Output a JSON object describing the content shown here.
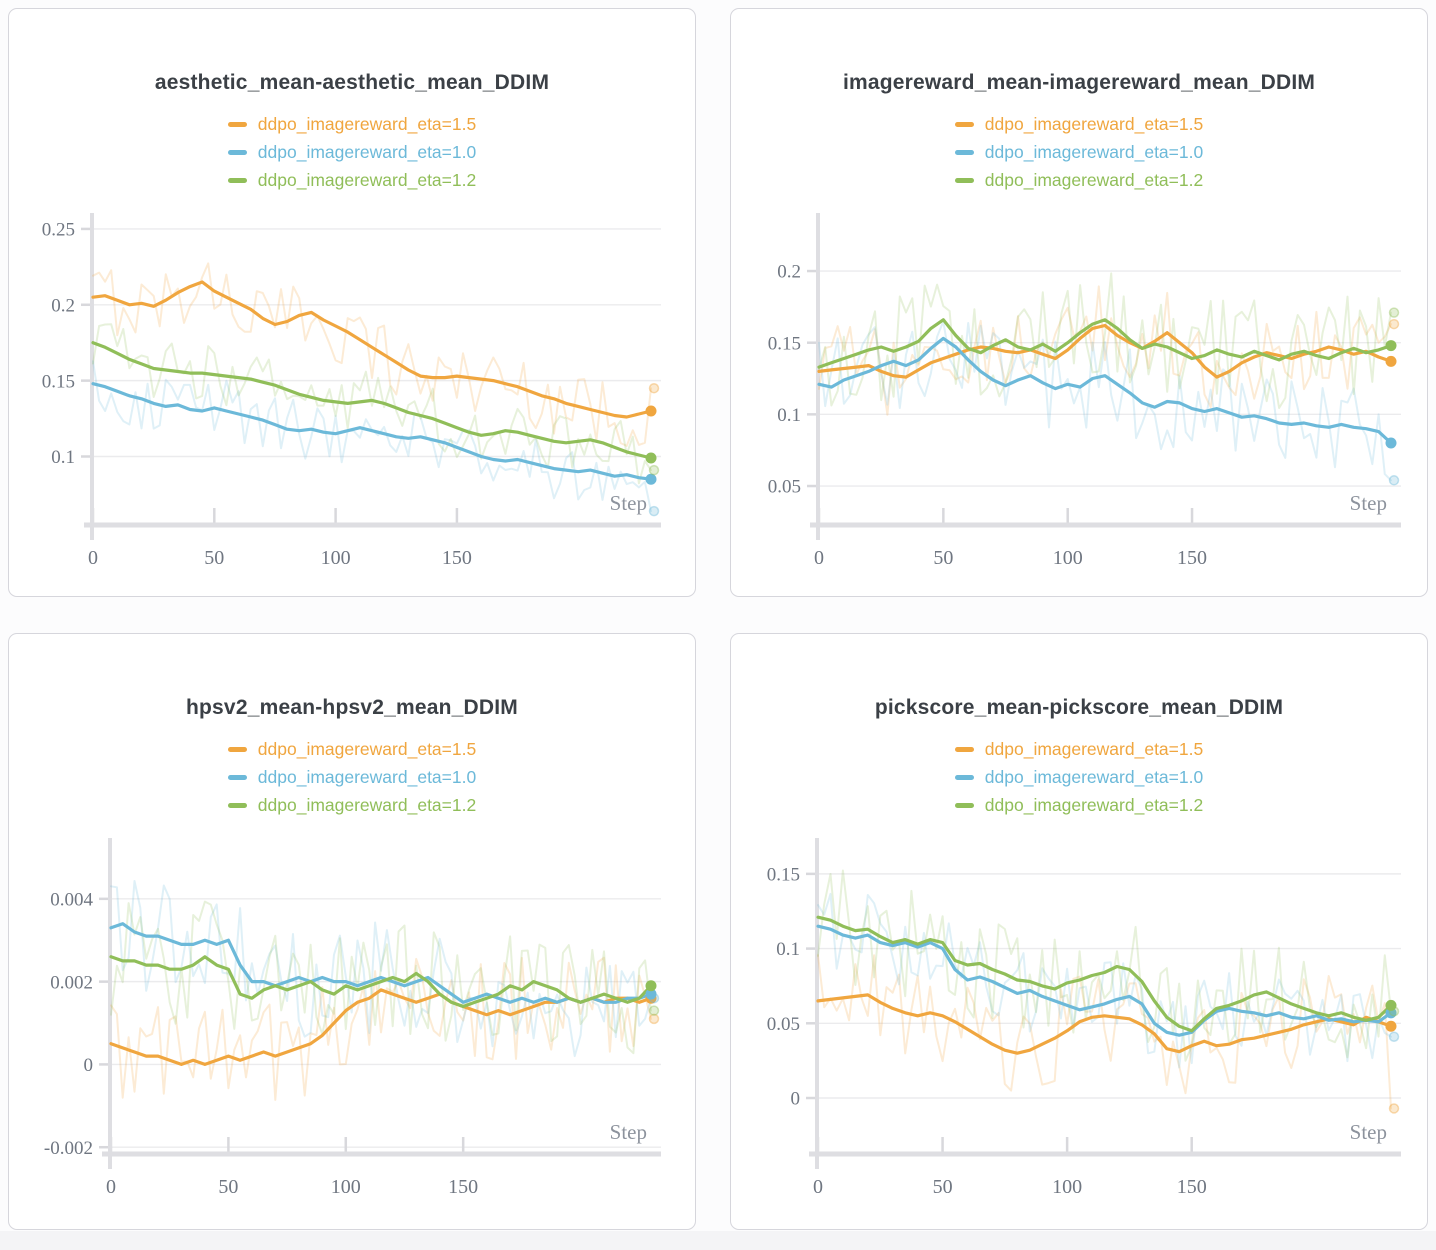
{
  "page": {
    "background": "#fcfcfd",
    "footer_strip_color": "#f4f4f6"
  },
  "styles": {
    "card_bg": "#ffffff",
    "card_border": "#d6d6dc",
    "title_color": "#3b4046",
    "tick_color": "#6f7681",
    "grid_color": "#ebebed",
    "axis_color": "#dedee2",
    "tick_stub_color": "#d8d8dc",
    "step_label_color": "#8d939d",
    "accent_orange": "#F0A63F",
    "accent_blue": "#6CB9D9",
    "accent_green": "#90BE59"
  },
  "x_axis_label": "Step",
  "chart_data": [
    {
      "type": "line",
      "title": "aesthetic_mean-aesthetic_mean_DDIM",
      "xlabel": "Step",
      "x_max": 230,
      "x_ticks": [
        {
          "v": 0,
          "label": "0"
        },
        {
          "v": 50,
          "label": "50"
        },
        {
          "v": 100,
          "label": "100"
        },
        {
          "v": 150,
          "label": "150"
        }
      ],
      "y_ticks": [
        {
          "v": 0.25,
          "label": "0.25"
        },
        {
          "v": 0.2,
          "label": "0.2"
        },
        {
          "v": 0.15,
          "label": "0.15"
        },
        {
          "v": 0.1,
          "label": "0.1"
        }
      ],
      "ylim": [
        0.0555,
        0.2605
      ],
      "legend_position": "top",
      "grid": true,
      "series": [
        {
          "name": "ddpo_imagereward_eta=1.5",
          "color": "#F0A63F",
          "noise": 0.024,
          "raw_end": 0.145,
          "values": [
            0.205,
            0.206,
            0.203,
            0.2,
            0.201,
            0.199,
            0.203,
            0.208,
            0.212,
            0.215,
            0.209,
            0.205,
            0.201,
            0.197,
            0.191,
            0.187,
            0.189,
            0.193,
            0.195,
            0.19,
            0.186,
            0.182,
            0.177,
            0.172,
            0.167,
            0.162,
            0.157,
            0.153,
            0.152,
            0.152,
            0.153,
            0.152,
            0.151,
            0.15,
            0.148,
            0.146,
            0.143,
            0.14,
            0.138,
            0.135,
            0.133,
            0.131,
            0.129,
            0.127,
            0.126,
            0.128,
            0.13
          ]
        },
        {
          "name": "ddpo_imagereward_eta=1.0",
          "color": "#6CB9D9",
          "noise": 0.02,
          "raw_end": 0.064,
          "values": [
            0.148,
            0.146,
            0.143,
            0.14,
            0.138,
            0.135,
            0.133,
            0.134,
            0.131,
            0.13,
            0.132,
            0.13,
            0.128,
            0.126,
            0.124,
            0.121,
            0.118,
            0.117,
            0.118,
            0.116,
            0.115,
            0.117,
            0.119,
            0.117,
            0.115,
            0.113,
            0.112,
            0.113,
            0.111,
            0.109,
            0.106,
            0.103,
            0.1,
            0.098,
            0.097,
            0.098,
            0.096,
            0.094,
            0.092,
            0.091,
            0.09,
            0.091,
            0.089,
            0.087,
            0.088,
            0.086,
            0.085
          ]
        },
        {
          "name": "ddpo_imagereward_eta=1.2",
          "color": "#90BE59",
          "noise": 0.02,
          "raw_end": 0.091,
          "values": [
            0.175,
            0.172,
            0.168,
            0.164,
            0.161,
            0.158,
            0.157,
            0.156,
            0.155,
            0.155,
            0.154,
            0.153,
            0.152,
            0.151,
            0.149,
            0.147,
            0.144,
            0.141,
            0.139,
            0.137,
            0.136,
            0.135,
            0.136,
            0.137,
            0.135,
            0.132,
            0.129,
            0.127,
            0.125,
            0.122,
            0.119,
            0.116,
            0.114,
            0.115,
            0.117,
            0.116,
            0.114,
            0.112,
            0.11,
            0.109,
            0.11,
            0.111,
            0.109,
            0.106,
            0.103,
            0.101,
            0.099
          ]
        }
      ]
    },
    {
      "type": "line",
      "title": "imagereward_mean-imagereward_mean_DDIM",
      "xlabel": "Step",
      "x_max": 230,
      "x_ticks": [
        {
          "v": 0,
          "label": "0"
        },
        {
          "v": 50,
          "label": "50"
        },
        {
          "v": 100,
          "label": "100"
        },
        {
          "v": 150,
          "label": "150"
        }
      ],
      "y_ticks": [
        {
          "v": 0.2,
          "label": "0.2"
        },
        {
          "v": 0.15,
          "label": "0.15"
        },
        {
          "v": 0.1,
          "label": "0.1"
        },
        {
          "v": 0.05,
          "label": "0.05"
        }
      ],
      "ylim": [
        0.0235,
        0.2405
      ],
      "legend_position": "top",
      "grid": true,
      "series": [
        {
          "name": "ddpo_imagereward_eta=1.5",
          "color": "#F0A63F",
          "noise": 0.03,
          "raw_end": 0.163,
          "values": [
            0.13,
            0.131,
            0.132,
            0.133,
            0.134,
            0.13,
            0.127,
            0.126,
            0.131,
            0.136,
            0.139,
            0.142,
            0.145,
            0.147,
            0.146,
            0.144,
            0.143,
            0.145,
            0.142,
            0.139,
            0.145,
            0.153,
            0.16,
            0.162,
            0.155,
            0.15,
            0.146,
            0.151,
            0.157,
            0.15,
            0.143,
            0.133,
            0.126,
            0.13,
            0.136,
            0.14,
            0.143,
            0.141,
            0.139,
            0.142,
            0.144,
            0.147,
            0.145,
            0.142,
            0.144,
            0.14,
            0.137
          ]
        },
        {
          "name": "ddpo_imagereward_eta=1.0",
          "color": "#6CB9D9",
          "noise": 0.033,
          "raw_end": 0.054,
          "values": [
            0.121,
            0.119,
            0.124,
            0.127,
            0.13,
            0.134,
            0.137,
            0.134,
            0.138,
            0.146,
            0.153,
            0.147,
            0.138,
            0.13,
            0.124,
            0.12,
            0.124,
            0.127,
            0.122,
            0.118,
            0.121,
            0.119,
            0.125,
            0.127,
            0.121,
            0.115,
            0.108,
            0.105,
            0.109,
            0.108,
            0.104,
            0.102,
            0.104,
            0.101,
            0.098,
            0.099,
            0.097,
            0.094,
            0.093,
            0.094,
            0.092,
            0.091,
            0.093,
            0.091,
            0.09,
            0.088,
            0.08
          ]
        },
        {
          "name": "ddpo_imagereward_eta=1.2",
          "color": "#90BE59",
          "noise": 0.038,
          "raw_end": 0.171,
          "values": [
            0.133,
            0.136,
            0.139,
            0.142,
            0.145,
            0.147,
            0.144,
            0.147,
            0.151,
            0.16,
            0.166,
            0.155,
            0.146,
            0.143,
            0.148,
            0.152,
            0.147,
            0.145,
            0.149,
            0.144,
            0.15,
            0.157,
            0.163,
            0.166,
            0.16,
            0.152,
            0.146,
            0.149,
            0.147,
            0.143,
            0.139,
            0.141,
            0.145,
            0.142,
            0.14,
            0.144,
            0.141,
            0.138,
            0.142,
            0.144,
            0.141,
            0.139,
            0.143,
            0.146,
            0.143,
            0.145,
            0.148
          ]
        }
      ]
    },
    {
      "type": "line",
      "title": "hpsv2_mean-hpsv2_mean_DDIM",
      "xlabel": "Step",
      "x_max": 230,
      "x_ticks": [
        {
          "v": 0,
          "label": "0"
        },
        {
          "v": 50,
          "label": "50"
        },
        {
          "v": 100,
          "label": "100"
        },
        {
          "v": 150,
          "label": "150"
        }
      ],
      "y_ticks": [
        {
          "v": 0.004,
          "label": "0.004"
        },
        {
          "v": 0.002,
          "label": "0.002"
        },
        {
          "v": 0,
          "label": "0"
        },
        {
          "v": -0.002,
          "label": "-0.002"
        }
      ],
      "ylim": [
        -0.00214,
        0.00547
      ],
      "legend_position": "top",
      "grid": true,
      "series": [
        {
          "name": "ddpo_imagereward_eta=1.5",
          "color": "#F0A63F",
          "noise": 0.0013,
          "raw_end": 0.0011,
          "values": [
            0.0005,
            0.0004,
            0.0003,
            0.0002,
            0.0002,
            0.0001,
            0.0,
            0.0001,
            0.0,
            0.0001,
            0.0002,
            0.0001,
            0.0002,
            0.0003,
            0.0002,
            0.0003,
            0.0004,
            0.0005,
            0.0007,
            0.001,
            0.0013,
            0.0015,
            0.0016,
            0.0018,
            0.0017,
            0.0016,
            0.0015,
            0.0016,
            0.0017,
            0.0015,
            0.0014,
            0.0013,
            0.0012,
            0.0013,
            0.0012,
            0.0013,
            0.0014,
            0.0015,
            0.0015,
            0.0016,
            0.0015,
            0.0016,
            0.0015,
            0.0016,
            0.0016,
            0.0015,
            0.0016
          ]
        },
        {
          "name": "ddpo_imagereward_eta=1.0",
          "color": "#6CB9D9",
          "noise": 0.0014,
          "raw_end": 0.0016,
          "values": [
            0.0033,
            0.0034,
            0.0032,
            0.0031,
            0.0031,
            0.003,
            0.0029,
            0.0029,
            0.003,
            0.0029,
            0.003,
            0.0024,
            0.002,
            0.002,
            0.0019,
            0.002,
            0.0021,
            0.002,
            0.0021,
            0.002,
            0.002,
            0.0019,
            0.002,
            0.0021,
            0.002,
            0.0019,
            0.002,
            0.0021,
            0.0019,
            0.0017,
            0.0015,
            0.0016,
            0.0017,
            0.0016,
            0.0015,
            0.0016,
            0.0015,
            0.0016,
            0.0015,
            0.0016,
            0.0015,
            0.0016,
            0.0015,
            0.0015,
            0.0016,
            0.0016,
            0.0017
          ]
        },
        {
          "name": "ddpo_imagereward_eta=1.2",
          "color": "#90BE59",
          "noise": 0.0014,
          "raw_end": 0.0013,
          "values": [
            0.0026,
            0.0025,
            0.0025,
            0.0024,
            0.0024,
            0.0023,
            0.0023,
            0.0024,
            0.0026,
            0.0024,
            0.0023,
            0.0017,
            0.0016,
            0.0018,
            0.0019,
            0.0018,
            0.0019,
            0.002,
            0.0018,
            0.0017,
            0.0019,
            0.0018,
            0.0019,
            0.002,
            0.0021,
            0.002,
            0.0022,
            0.002,
            0.0017,
            0.0015,
            0.0014,
            0.0015,
            0.0016,
            0.0017,
            0.0019,
            0.0018,
            0.002,
            0.0019,
            0.0018,
            0.0016,
            0.0015,
            0.0016,
            0.0017,
            0.0016,
            0.0015,
            0.0016,
            0.0019
          ]
        }
      ]
    },
    {
      "type": "line",
      "title": "pickscore_mean-pickscore_mean_DDIM",
      "xlabel": "Step",
      "x_max": 230,
      "x_ticks": [
        {
          "v": 0,
          "label": "0"
        },
        {
          "v": 50,
          "label": "50"
        },
        {
          "v": 100,
          "label": "100"
        },
        {
          "v": 150,
          "label": "150"
        }
      ],
      "y_ticks": [
        {
          "v": 0.15,
          "label": "0.15"
        },
        {
          "v": 0.1,
          "label": "0.1"
        },
        {
          "v": 0.05,
          "label": "0.05"
        },
        {
          "v": 0,
          "label": "0"
        }
      ],
      "ylim": [
        -0.0368,
        0.174
      ],
      "legend_position": "top",
      "grid": true,
      "series": [
        {
          "name": "ddpo_imagereward_eta=1.5",
          "color": "#F0A63F",
          "noise": 0.032,
          "raw_end": -0.007,
          "values": [
            0.065,
            0.066,
            0.067,
            0.068,
            0.069,
            0.064,
            0.06,
            0.057,
            0.055,
            0.057,
            0.055,
            0.051,
            0.046,
            0.041,
            0.036,
            0.032,
            0.03,
            0.032,
            0.036,
            0.04,
            0.045,
            0.051,
            0.054,
            0.055,
            0.054,
            0.053,
            0.049,
            0.043,
            0.033,
            0.031,
            0.035,
            0.038,
            0.035,
            0.036,
            0.039,
            0.04,
            0.042,
            0.044,
            0.046,
            0.049,
            0.051,
            0.053,
            0.051,
            0.049,
            0.054,
            0.051,
            0.048
          ]
        },
        {
          "name": "ddpo_imagereward_eta=1.0",
          "color": "#6CB9D9",
          "noise": 0.028,
          "raw_end": 0.041,
          "values": [
            0.115,
            0.113,
            0.109,
            0.107,
            0.109,
            0.104,
            0.102,
            0.104,
            0.101,
            0.104,
            0.1,
            0.086,
            0.079,
            0.081,
            0.078,
            0.074,
            0.07,
            0.072,
            0.068,
            0.065,
            0.062,
            0.059,
            0.061,
            0.063,
            0.066,
            0.068,
            0.063,
            0.05,
            0.044,
            0.042,
            0.044,
            0.052,
            0.058,
            0.06,
            0.058,
            0.057,
            0.055,
            0.057,
            0.054,
            0.053,
            0.055,
            0.052,
            0.053,
            0.051,
            0.052,
            0.051,
            0.057
          ]
        },
        {
          "name": "ddpo_imagereward_eta=1.2",
          "color": "#90BE59",
          "noise": 0.038,
          "raw_end": 0.058,
          "values": [
            0.121,
            0.119,
            0.115,
            0.112,
            0.113,
            0.108,
            0.104,
            0.106,
            0.103,
            0.106,
            0.104,
            0.092,
            0.089,
            0.09,
            0.086,
            0.083,
            0.079,
            0.078,
            0.075,
            0.073,
            0.077,
            0.079,
            0.082,
            0.084,
            0.088,
            0.086,
            0.078,
            0.065,
            0.054,
            0.048,
            0.045,
            0.053,
            0.06,
            0.062,
            0.065,
            0.069,
            0.071,
            0.067,
            0.063,
            0.06,
            0.057,
            0.055,
            0.057,
            0.054,
            0.052,
            0.054,
            0.062
          ]
        }
      ]
    }
  ]
}
